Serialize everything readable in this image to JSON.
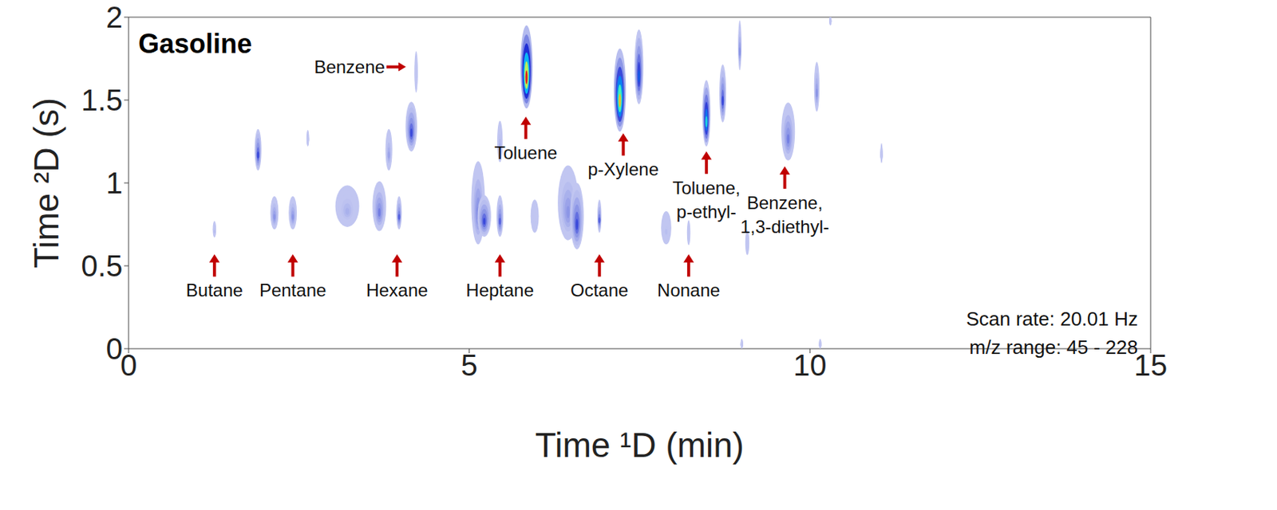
{
  "chart_data": {
    "type": "heatmap",
    "title": "Gasoline",
    "xlabel": "Time ¹D (min)",
    "ylabel": "Time ²D (s)",
    "xlim": [
      0,
      15
    ],
    "xticks": [
      0,
      5,
      10,
      15
    ],
    "ylim": [
      0,
      2
    ],
    "yticks": [
      0,
      0.5,
      1,
      1.5,
      2
    ],
    "color_range": [
      0,
      1
    ],
    "notes": [
      "Scan rate: 20.01 Hz",
      "m/z range: 45 - 228"
    ],
    "peaks": [
      {
        "x": 1.26,
        "y": 0.72,
        "width": 0.05,
        "height": 0.1,
        "intensity": 0.15
      },
      {
        "x": 1.9,
        "y": 1.2,
        "width": 0.1,
        "height": 0.25,
        "intensity": 0.45
      },
      {
        "x": 2.14,
        "y": 0.82,
        "width": 0.12,
        "height": 0.2,
        "intensity": 0.3
      },
      {
        "x": 2.41,
        "y": 0.82,
        "width": 0.12,
        "height": 0.2,
        "intensity": 0.3
      },
      {
        "x": 2.63,
        "y": 1.27,
        "width": 0.04,
        "height": 0.1,
        "intensity": 0.1
      },
      {
        "x": 3.21,
        "y": 0.86,
        "width": 0.35,
        "height": 0.25,
        "intensity": 0.2
      },
      {
        "x": 3.68,
        "y": 0.86,
        "width": 0.2,
        "height": 0.3,
        "intensity": 0.35
      },
      {
        "x": 3.97,
        "y": 0.82,
        "width": 0.08,
        "height": 0.2,
        "intensity": 0.4
      },
      {
        "x": 3.82,
        "y": 1.2,
        "width": 0.1,
        "height": 0.25,
        "intensity": 0.25
      },
      {
        "x": 4.15,
        "y": 1.34,
        "width": 0.17,
        "height": 0.3,
        "intensity": 0.45
      },
      {
        "x": 4.22,
        "y": 1.67,
        "width": 0.05,
        "height": 0.25,
        "intensity": 0.12
      },
      {
        "x": 5.13,
        "y": 0.88,
        "width": 0.2,
        "height": 0.5,
        "intensity": 0.35
      },
      {
        "x": 5.22,
        "y": 0.8,
        "width": 0.2,
        "height": 0.25,
        "intensity": 0.45
      },
      {
        "x": 5.45,
        "y": 0.8,
        "width": 0.1,
        "height": 0.25,
        "intensity": 0.4
      },
      {
        "x": 5.45,
        "y": 1.25,
        "width": 0.08,
        "height": 0.25,
        "intensity": 0.2
      },
      {
        "x": 5.84,
        "y": 1.7,
        "width": 0.18,
        "height": 0.5,
        "intensity": 1.0
      },
      {
        "x": 5.96,
        "y": 0.8,
        "width": 0.12,
        "height": 0.2,
        "intensity": 0.12
      },
      {
        "x": 6.45,
        "y": 0.88,
        "width": 0.3,
        "height": 0.45,
        "intensity": 0.3
      },
      {
        "x": 6.58,
        "y": 0.8,
        "width": 0.2,
        "height": 0.4,
        "intensity": 0.45
      },
      {
        "x": 6.91,
        "y": 0.8,
        "width": 0.06,
        "height": 0.2,
        "intensity": 0.4
      },
      {
        "x": 7.21,
        "y": 1.56,
        "width": 0.18,
        "height": 0.5,
        "intensity": 0.9
      },
      {
        "x": 7.49,
        "y": 1.7,
        "width": 0.13,
        "height": 0.45,
        "intensity": 0.55
      },
      {
        "x": 7.89,
        "y": 0.73,
        "width": 0.15,
        "height": 0.2,
        "intensity": 0.15
      },
      {
        "x": 8.22,
        "y": 0.7,
        "width": 0.05,
        "height": 0.15,
        "intensity": 0.12
      },
      {
        "x": 8.48,
        "y": 1.42,
        "width": 0.12,
        "height": 0.4,
        "intensity": 0.7
      },
      {
        "x": 8.72,
        "y": 1.54,
        "width": 0.1,
        "height": 0.35,
        "intensity": 0.45
      },
      {
        "x": 8.97,
        "y": 1.83,
        "width": 0.05,
        "height": 0.3,
        "intensity": 0.3
      },
      {
        "x": 9.08,
        "y": 0.64,
        "width": 0.06,
        "height": 0.15,
        "intensity": 0.08
      },
      {
        "x": 9.68,
        "y": 1.31,
        "width": 0.2,
        "height": 0.35,
        "intensity": 0.35
      },
      {
        "x": 10.1,
        "y": 1.58,
        "width": 0.08,
        "height": 0.3,
        "intensity": 0.3
      },
      {
        "x": 11.05,
        "y": 1.18,
        "width": 0.03,
        "height": 0.12,
        "intensity": 0.08
      },
      {
        "x": 9.0,
        "y": 0.03,
        "width": 0.03,
        "height": 0.06,
        "intensity": 0.08
      },
      {
        "x": 10.15,
        "y": 0.03,
        "width": 0.03,
        "height": 0.06,
        "intensity": 0.08
      },
      {
        "x": 10.3,
        "y": 1.98,
        "width": 0.03,
        "height": 0.06,
        "intensity": 0.08
      }
    ],
    "annotations": [
      {
        "text": "Butane",
        "x": 1.26,
        "y": 0.57,
        "arrow": "up"
      },
      {
        "text": "Pentane",
        "x": 2.41,
        "y": 0.57,
        "arrow": "up"
      },
      {
        "text": "Hexane",
        "x": 3.94,
        "y": 0.57,
        "arrow": "up"
      },
      {
        "text": "Heptane",
        "x": 5.45,
        "y": 0.57,
        "arrow": "up"
      },
      {
        "text": "Octane",
        "x": 6.91,
        "y": 0.57,
        "arrow": "up"
      },
      {
        "text": "Nonane",
        "x": 8.22,
        "y": 0.57,
        "arrow": "up"
      },
      {
        "text": "Toluene",
        "x": 5.83,
        "y": 1.4,
        "arrow": "up"
      },
      {
        "text": "p-Xylene",
        "x": 7.26,
        "y": 1.3,
        "arrow": "up"
      },
      {
        "text": [
          "Toluene,",
          "p-ethyl-"
        ],
        "x": 8.48,
        "y": 1.19,
        "arrow": "up"
      },
      {
        "text": [
          "Benzene,",
          "1,3-diethyl-"
        ],
        "x": 9.63,
        "y": 1.1,
        "arrow": "up"
      },
      {
        "text": "Benzene",
        "x": 4.07,
        "y": 1.7,
        "arrow": "right"
      }
    ]
  }
}
